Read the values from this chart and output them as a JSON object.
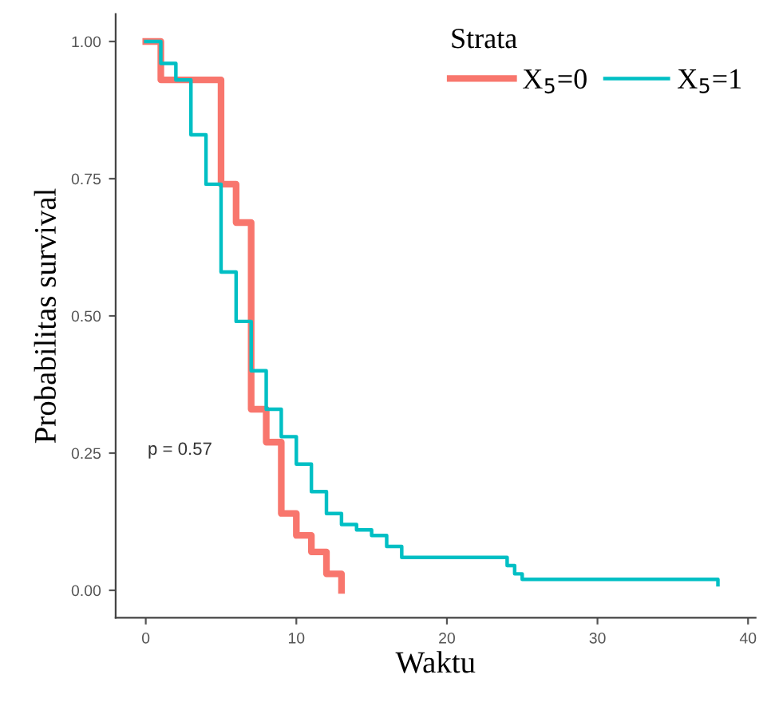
{
  "chart_data": {
    "type": "step",
    "xlabel": "Waktu",
    "ylabel": "Probabilitas survival",
    "legend_title": "Strata",
    "legend": "top right",
    "grid": false,
    "series": [
      {
        "name": "X$_{5}$=0",
        "color": "#f8766d",
        "x": [
          0,
          1,
          5,
          6,
          7,
          8,
          9,
          10,
          11,
          12,
          13
        ],
        "values": [
          1.0,
          0.93,
          0.74,
          0.67,
          0.33,
          0.27,
          0.14,
          0.1,
          0.07,
          0.03,
          0.0
        ]
      },
      {
        "name": "X$_{5}$=1",
        "color": "#00bfc4",
        "x": [
          0,
          1,
          2,
          3,
          4,
          5,
          6,
          7,
          8,
          9,
          10,
          11,
          12,
          13,
          14,
          15,
          16,
          17,
          24,
          24.5,
          25,
          38
        ],
        "values": [
          1.0,
          0.96,
          0.93,
          0.83,
          0.74,
          0.58,
          0.49,
          0.4,
          0.33,
          0.28,
          0.23,
          0.18,
          0.14,
          0.12,
          0.11,
          0.1,
          0.08,
          0.06,
          0.045,
          0.03,
          0.02,
          0.01
        ]
      }
    ],
    "xlim": [
      -2,
      40.5
    ],
    "ylim": [
      -0.05,
      1.05
    ],
    "xticks": [
      0,
      10,
      20,
      30,
      40
    ],
    "yticks": [
      {
        "value": 0,
        "label": "0.00"
      },
      {
        "value": 0.25,
        "label": "0.25"
      },
      {
        "value": 0.5,
        "label": "0.50"
      },
      {
        "value": 0.75,
        "label": "0.75"
      },
      {
        "value": 1,
        "label": "1.00"
      }
    ],
    "annotations": [
      "p = 0.57"
    ]
  }
}
